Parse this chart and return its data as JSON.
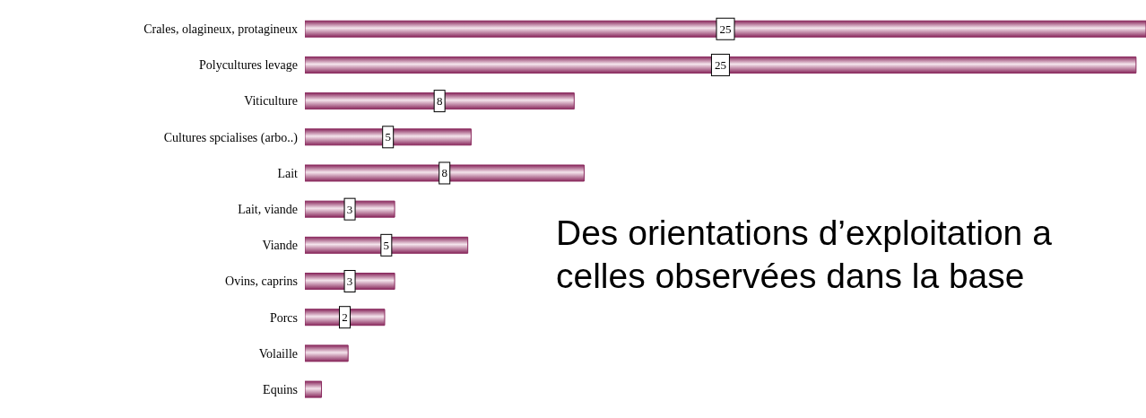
{
  "chart_data": {
    "type": "bar",
    "orientation": "horizontal",
    "categories": [
      "Crales, olagineux, protagineux",
      "Polycultures levage",
      "Viticulture",
      "Cultures spcialises (arbo..)",
      "Lait",
      "Lait, viande",
      "Viande",
      "Ovins, caprins",
      "Porcs",
      "Volaille",
      "Equins"
    ],
    "values": [
      25.3,
      25,
      8.1,
      5,
      8.4,
      2.7,
      4.9,
      2.7,
      2.4,
      1.3,
      0.5
    ],
    "value_labels": [
      "25",
      "25",
      "8",
      "5",
      "8",
      "3",
      "5",
      "3",
      "2",
      null,
      null
    ],
    "color": "#8a2a5e",
    "annotations": [
      "Des orientations d’exploitation a celles observées dans la base"
    ],
    "grid": false,
    "legend": false
  }
}
